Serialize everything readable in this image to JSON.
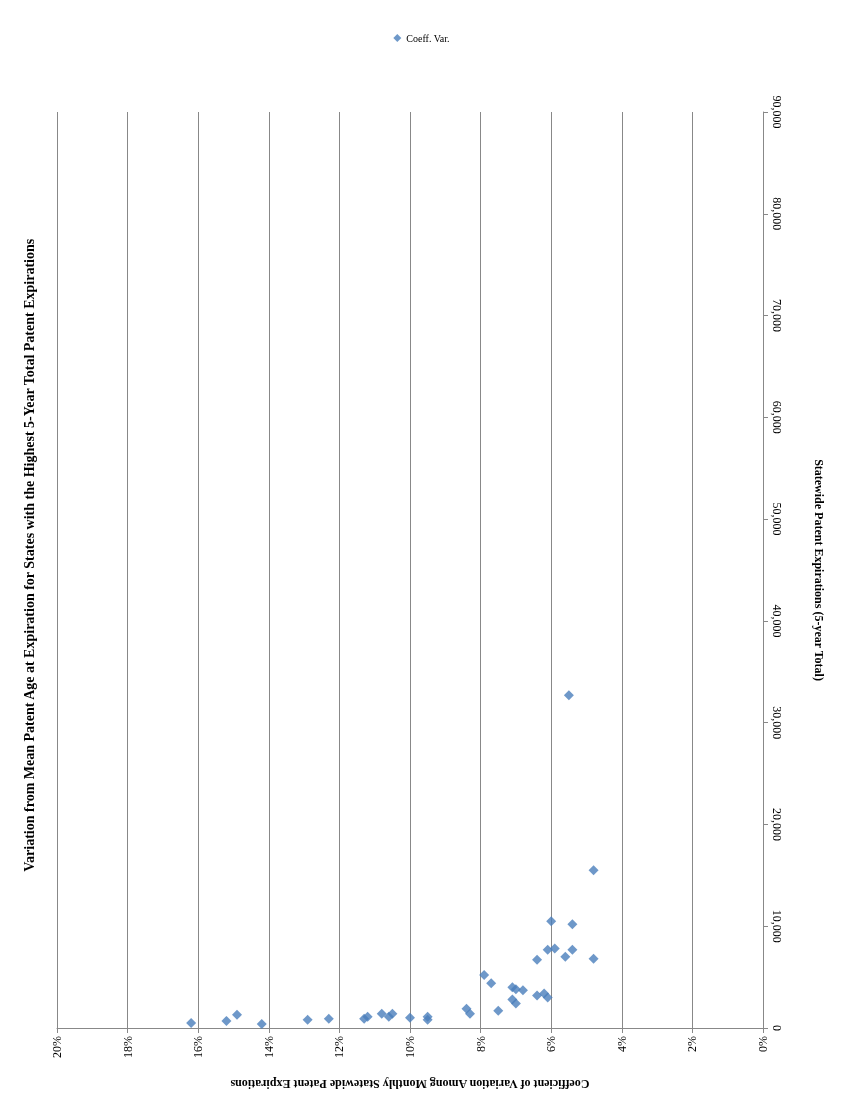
{
  "chart_data": {
    "type": "scatter",
    "title": "Variation from Mean Patent Age at Expiration for States with the Highest 5-Year Total Patent Expirations",
    "xlabel": "Coefficient of Variation Among Monthly Statewide Patent Expirations",
    "ylabel": "Statewide Patent Expirations (5-year Total)",
    "xlim": [
      20,
      0
    ],
    "xticks": [
      {
        "value": 0,
        "label": "0%"
      },
      {
        "value": 2,
        "label": "2%"
      },
      {
        "value": 4,
        "label": "4%"
      },
      {
        "value": 6,
        "label": "6%"
      },
      {
        "value": 8,
        "label": "8%"
      },
      {
        "value": 10,
        "label": "10%"
      },
      {
        "value": 12,
        "label": "12%"
      },
      {
        "value": 14,
        "label": "14%"
      },
      {
        "value": 16,
        "label": "16%"
      },
      {
        "value": 18,
        "label": "18%"
      },
      {
        "value": 20,
        "label": "20%"
      }
    ],
    "ylim": [
      0,
      90000
    ],
    "yticks": [
      {
        "value": 0,
        "label": "0"
      },
      {
        "value": 10000,
        "label": "10,000"
      },
      {
        "value": 20000,
        "label": "20,000"
      },
      {
        "value": 30000,
        "label": "30,000"
      },
      {
        "value": 40000,
        "label": "40,000"
      },
      {
        "value": 50000,
        "label": "50,000"
      },
      {
        "value": 60000,
        "label": "60,000"
      },
      {
        "value": 70000,
        "label": "70,000"
      },
      {
        "value": 80000,
        "label": "80,000"
      },
      {
        "value": 90000,
        "label": "90,000"
      }
    ],
    "grid": "x",
    "legend": "top",
    "marker": "diamond",
    "series": [
      {
        "name": "Coeff. Var.",
        "color": "#4a7ebb",
        "x": [
          16.2,
          15.2,
          14.9,
          14.2,
          12.9,
          12.3,
          11.3,
          11.2,
          10.8,
          10.6,
          10.5,
          10.0,
          9.5,
          9.5,
          8.4,
          8.3,
          7.9,
          7.7,
          7.5,
          7.1,
          7.1,
          7.0,
          7.0,
          6.8,
          6.4,
          6.4,
          6.2,
          6.1,
          6.0,
          6.1,
          5.9,
          5.6,
          5.4,
          5.4,
          4.8,
          4.8,
          5.5
        ],
        "values": [
          500,
          700,
          1300,
          400,
          800,
          900,
          900,
          1100,
          1400,
          1100,
          1400,
          1000,
          1100,
          800,
          1900,
          1400,
          5200,
          4400,
          1700,
          4000,
          2800,
          3800,
          2400,
          3700,
          6700,
          3200,
          3400,
          3000,
          10500,
          7700,
          7800,
          7000,
          7700,
          10200,
          6800,
          15500,
          32700
        ]
      }
    ]
  }
}
